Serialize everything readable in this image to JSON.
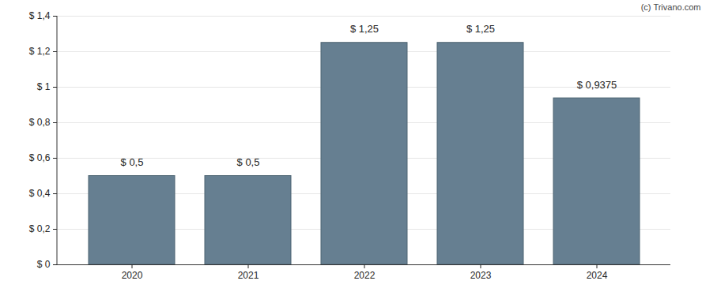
{
  "chart_data": {
    "type": "bar",
    "annotations": [
      "(c) Trivano.com"
    ],
    "categories": [
      "2020",
      "2021",
      "2022",
      "2023",
      "2024"
    ],
    "values": [
      0.5,
      0.5,
      1.25,
      1.25,
      0.9375
    ],
    "value_labels": [
      "$ 0,5",
      "$ 0,5",
      "$ 1,25",
      "$ 1,25",
      "$ 0,9375"
    ],
    "data_labels": true,
    "color": "#667f91",
    "ylim": [
      0,
      1.4
    ],
    "yticks": [
      {
        "value": 0,
        "label": "$ 0"
      },
      {
        "value": 0.2,
        "label": "$ 0,2"
      },
      {
        "value": 0.4,
        "label": "$ 0,4"
      },
      {
        "value": 0.6,
        "label": "$ 0,6"
      },
      {
        "value": 0.8,
        "label": "$ 0,8"
      },
      {
        "value": 1,
        "label": "$ 1"
      },
      {
        "value": 1.2,
        "label": "$ 1,2"
      },
      {
        "value": 1.4,
        "label": "$ 1,4"
      }
    ],
    "grid": true
  }
}
